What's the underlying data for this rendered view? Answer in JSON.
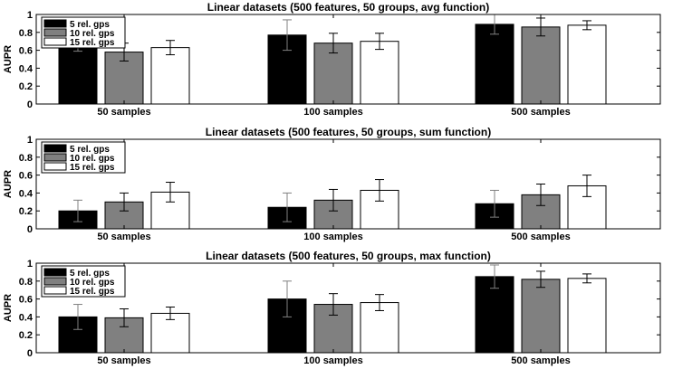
{
  "chart_data": [
    {
      "type": "bar",
      "title": "Linear datasets (500 features, 50 groups, avg function)",
      "ylabel": "AUPR",
      "xlabel": "",
      "ylim": [
        0,
        1
      ],
      "yticks": [
        "0",
        "0.2",
        "0.4",
        "0.6",
        "0.8",
        "1"
      ],
      "categories": [
        "50 samples",
        "100 samples",
        "500 samples"
      ],
      "legend_position": "top-left",
      "series": [
        {
          "name": "5 rel. gps",
          "color": "#000000",
          "values": [
            0.66,
            0.77,
            0.89
          ],
          "errors": [
            0.07,
            0.17,
            0.11
          ]
        },
        {
          "name": "10 rel. gps",
          "color": "#808080",
          "values": [
            0.58,
            0.68,
            0.86
          ],
          "errors": [
            0.1,
            0.11,
            0.1
          ]
        },
        {
          "name": "15 rel. gps",
          "color": "#ffffff",
          "values": [
            0.63,
            0.7,
            0.88
          ],
          "errors": [
            0.08,
            0.09,
            0.05
          ]
        }
      ]
    },
    {
      "type": "bar",
      "title": "Linear datasets (500 features, 50 groups, sum function)",
      "ylabel": "AUPR",
      "xlabel": "",
      "ylim": [
        0,
        1
      ],
      "yticks": [
        "0",
        "0.2",
        "0.4",
        "0.6",
        "0.8",
        "1"
      ],
      "categories": [
        "50 samples",
        "100 samples",
        "500 samples"
      ],
      "legend_position": "top-left",
      "series": [
        {
          "name": "5 rel. gps",
          "color": "#000000",
          "values": [
            0.2,
            0.24,
            0.28
          ],
          "errors": [
            0.12,
            0.16,
            0.15
          ]
        },
        {
          "name": "10 rel. gps",
          "color": "#808080",
          "values": [
            0.3,
            0.32,
            0.38
          ],
          "errors": [
            0.1,
            0.12,
            0.12
          ]
        },
        {
          "name": "15 rel. gps",
          "color": "#ffffff",
          "values": [
            0.41,
            0.43,
            0.48
          ],
          "errors": [
            0.11,
            0.12,
            0.12
          ]
        }
      ]
    },
    {
      "type": "bar",
      "title": "Linear datasets (500 features, 50 groups, max function)",
      "ylabel": "AUPR",
      "xlabel": "",
      "ylim": [
        0,
        1
      ],
      "yticks": [
        "0",
        "0.2",
        "0.4",
        "0.6",
        "0.8",
        "1"
      ],
      "categories": [
        "50 samples",
        "100 samples",
        "500 samples"
      ],
      "legend_position": "top-left",
      "series": [
        {
          "name": "5 rel. gps",
          "color": "#000000",
          "values": [
            0.4,
            0.6,
            0.85
          ],
          "errors": [
            0.14,
            0.2,
            0.13
          ]
        },
        {
          "name": "10 rel. gps",
          "color": "#808080",
          "values": [
            0.39,
            0.54,
            0.82
          ],
          "errors": [
            0.1,
            0.12,
            0.09
          ]
        },
        {
          "name": "15 rel. gps",
          "color": "#ffffff",
          "values": [
            0.44,
            0.56,
            0.83
          ],
          "errors": [
            0.07,
            0.09,
            0.05
          ]
        }
      ]
    }
  ]
}
